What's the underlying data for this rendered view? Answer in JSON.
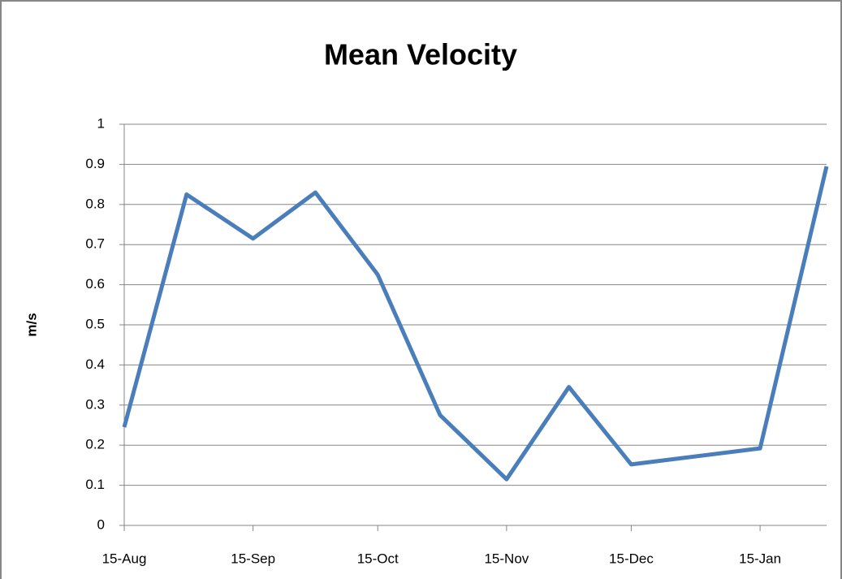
{
  "chart_data": {
    "type": "line",
    "title": "Mean Velocity",
    "y_label": "m/s",
    "x": [
      0,
      15,
      31,
      46,
      61,
      76,
      92,
      107,
      122,
      153,
      169
    ],
    "series": [
      {
        "name": "Mean Velocity",
        "color": "#4a7ebb",
        "values": [
          0.245,
          0.825,
          0.715,
          0.83,
          0.625,
          0.275,
          0.115,
          0.345,
          0.152,
          0.192,
          0.895
        ]
      }
    ],
    "xlim": [
      0,
      169
    ],
    "xticks": [
      {
        "value": 0,
        "label": "15-Aug"
      },
      {
        "value": 31,
        "label": "15-Sep"
      },
      {
        "value": 61,
        "label": "15-Oct"
      },
      {
        "value": 92,
        "label": "15-Nov"
      },
      {
        "value": 122,
        "label": "15-Dec"
      },
      {
        "value": 153,
        "label": "15-Jan"
      }
    ],
    "ylim": [
      0,
      1
    ],
    "yticks": [
      0,
      0.1,
      0.2,
      0.3,
      0.4,
      0.5,
      0.6,
      0.7,
      0.8,
      0.9,
      1
    ],
    "grid": true
  }
}
